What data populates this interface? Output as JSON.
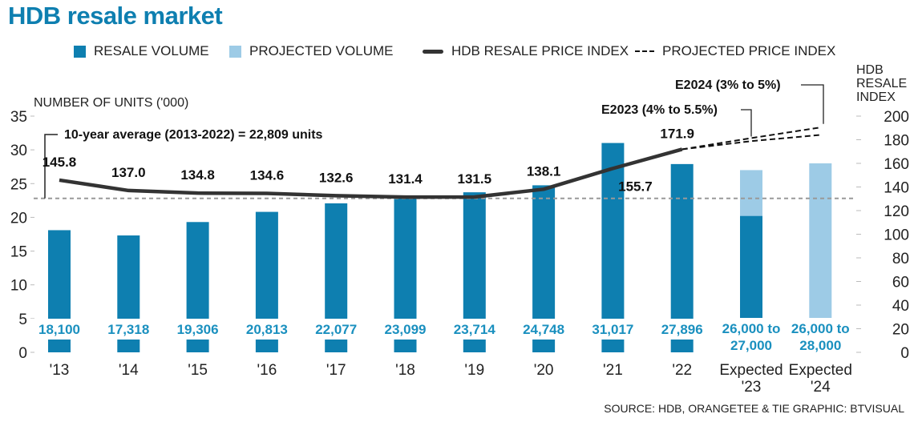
{
  "title": "HDB resale market",
  "legend": [
    {
      "label": "RESALE VOLUME",
      "color": "#0e7fb0",
      "kind": "bar"
    },
    {
      "label": "PROJECTED VOLUME",
      "color": "#9dcbe6",
      "kind": "bar"
    },
    {
      "label": "HDB RESALE PRICE INDEX",
      "color": "#333333",
      "kind": "line"
    },
    {
      "label": "PROJECTED PRICE INDEX",
      "color": "#111111",
      "kind": "dashed"
    }
  ],
  "source": "SOURCE: HDB, ORANGETEE & TIE   GRAPHIC: BTVISUAL",
  "chart_data": {
    "type": "bar",
    "title": "HDB resale market",
    "categories": [
      "'13",
      "'14",
      "'15",
      "'16",
      "'17",
      "'18",
      "'19",
      "'20",
      "'21",
      "'22",
      "Expected '23",
      "Expected '24"
    ],
    "category_lines": [
      [
        "'13"
      ],
      [
        "'14"
      ],
      [
        "'15"
      ],
      [
        "'16"
      ],
      [
        "'17"
      ],
      [
        "'18"
      ],
      [
        "'19"
      ],
      [
        "'20"
      ],
      [
        "'21"
      ],
      [
        "'22"
      ],
      [
        "Expected",
        "'23"
      ],
      [
        "Expected",
        "'24"
      ]
    ],
    "ylabel_left": "NUMBER OF UNITS ('000)",
    "ylabel_right": [
      "HDB",
      "RESALE",
      "INDEX"
    ],
    "ylim_left": [
      0,
      35
    ],
    "yticks_left": [
      0,
      5,
      10,
      15,
      20,
      25,
      30,
      35
    ],
    "ylim_right": [
      0,
      200
    ],
    "yticks_right": [
      0,
      20,
      40,
      60,
      80,
      100,
      120,
      140,
      160,
      180,
      200
    ],
    "grid": false,
    "legend_position": "top",
    "series": [
      {
        "name": "RESALE VOLUME",
        "axis": "left",
        "values": [
          18.1,
          17.318,
          19.306,
          20.813,
          22.077,
          23.099,
          23.714,
          24.748,
          31.017,
          27.896,
          20.2,
          null
        ],
        "color": "#0e7fb0"
      },
      {
        "name": "PROJECTED VOLUME",
        "axis": "left",
        "values": [
          null,
          null,
          null,
          null,
          null,
          null,
          null,
          null,
          null,
          null,
          27.0,
          28.0
        ],
        "color": "#9dcbe6"
      },
      {
        "name": "HDB RESALE PRICE INDEX",
        "axis": "right",
        "type": "line",
        "values": [
          145.8,
          137.0,
          134.8,
          134.6,
          132.6,
          131.4,
          131.5,
          138.1,
          155.7,
          171.9,
          null,
          null
        ],
        "color": "#333333"
      },
      {
        "name": "PROJECTED PRICE INDEX",
        "axis": "right",
        "type": "dashed",
        "upper": [
          null,
          null,
          null,
          null,
          null,
          null,
          null,
          null,
          null,
          171.9,
          181.4,
          190.4
        ],
        "lower": [
          null,
          null,
          null,
          null,
          null,
          null,
          null,
          null,
          null,
          171.9,
          178.8,
          184.1
        ],
        "color": "#111111"
      }
    ],
    "bar_labels": [
      [
        "18,100"
      ],
      [
        "17,318"
      ],
      [
        "19,306"
      ],
      [
        "20,813"
      ],
      [
        "22,077"
      ],
      [
        "23,099"
      ],
      [
        "23,714"
      ],
      [
        "24,748"
      ],
      [
        "31,017"
      ],
      [
        "27,896"
      ],
      [
        "26,000 to",
        "27,000"
      ],
      [
        "26,000 to",
        "28,000"
      ]
    ],
    "index_labels": [
      "145.8",
      "137.0",
      "134.8",
      "134.6",
      "132.6",
      "131.4",
      "131.5",
      "138.1",
      "155.7",
      "171.9"
    ],
    "average_line": {
      "value": 22.809,
      "label": "10-year average (2013-2022) = 22,809 units"
    },
    "annotations": [
      {
        "label": "E2023 (4% to 5.5%)"
      },
      {
        "label": "E2024 (3% to 5%)"
      }
    ]
  }
}
